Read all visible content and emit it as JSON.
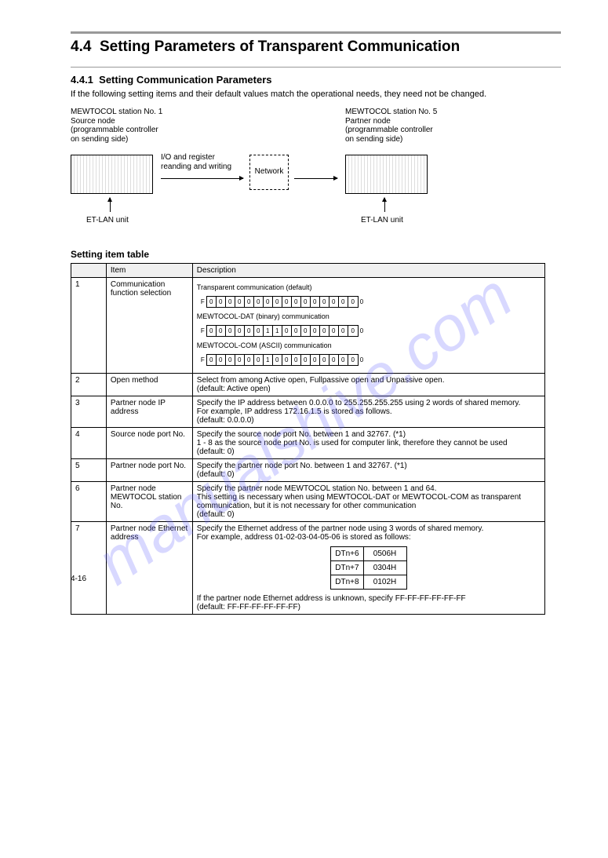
{
  "watermark": "manualshive.com",
  "header": {
    "section_no": "4.4",
    "section_title": "Setting Parameters of Transparent Communication",
    "sub_no": "4.4.1",
    "sub_title": "Setting Communication Parameters",
    "description": "If the following setting items and their default values match the operational needs, they need not be changed."
  },
  "diagram": {
    "left_title": "MEWTOCOL station No. 1\nSource node\n(programmable controller\non sending side)",
    "right_title": "MEWTOCOL station No. 5\nPartner node\n(programmable controller\non sending side)",
    "center_label": "I/O and register\nreanding and writing",
    "network_label": "Network",
    "et_lan": "ET-LAN unit"
  },
  "table": {
    "title": "Setting item table",
    "headers": [
      "",
      "Item",
      "Description"
    ],
    "rows": [
      {
        "no": "1",
        "item": "Communication function selection",
        "bits1": {
          "caption": "Transparent communication (default)",
          "bits": "0000000000000000"
        },
        "bits2": {
          "caption": "MEWTOCOL-DAT (binary) communication",
          "bits": "0000001100000000"
        },
        "bits3": {
          "caption": "MEWTOCOL-COM (ASCII) communication",
          "bits": "0000001000000000"
        }
      },
      {
        "no": "2",
        "item": "Open method",
        "desc": "Select from among Active open, Fullpassive open and Unpassive open.\n(default: Active open)"
      },
      {
        "no": "3",
        "item": "Partner node IP address",
        "desc": "Specify the IP address between 0.0.0.0 to 255.255.255.255 using 2 words of shared memory.\nFor example, IP address 172.16.1.5 is stored as follows.\n(default: 0.0.0.0)",
        "ip_demo": true
      },
      {
        "no": "4",
        "item": "Source node port No.",
        "desc": "Specify the source node port No. between 1 and 32767. (*1)\n1 - 8 as the source node port No. is used for computer link, therefore they cannot be used\n(default: 0)"
      },
      {
        "no": "5",
        "item": "Partner node port No.",
        "desc": "Specify the partner node port No. between 1 and 32767. (*1)\n(default: 0)"
      },
      {
        "no": "6",
        "item": "Partner node MEWTOCOL station No.",
        "desc": "Specify the partner node MEWTOCOL station No. between 1 and 64.\nThis setting is necessary when using MEWTOCOL-DAT or MEWTOCOL-COM as transparent communication, but it is not necessary for other communication\n(default: 0)"
      },
      {
        "no": "7",
        "item": "Partner node Ethernet address",
        "desc": "Specify the Ethernet address of the partner node using 3 words of shared memory.\nFor example, address 01-02-03-04-05-06 is stored as follows:",
        "eth_rows": [
          {
            "dt": "DTn+6",
            "val": "0506H"
          },
          {
            "dt": "DTn+7",
            "val": "0304H"
          },
          {
            "dt": "DTn+8",
            "val": "0102H"
          }
        ],
        "desc2": "If the partner node Ethernet address is unknown, specify FF-FF-FF-FF-FF-FF\n(default: FF-FF-FF-FF-FF-FF)"
      }
    ]
  },
  "footer": "4-16"
}
